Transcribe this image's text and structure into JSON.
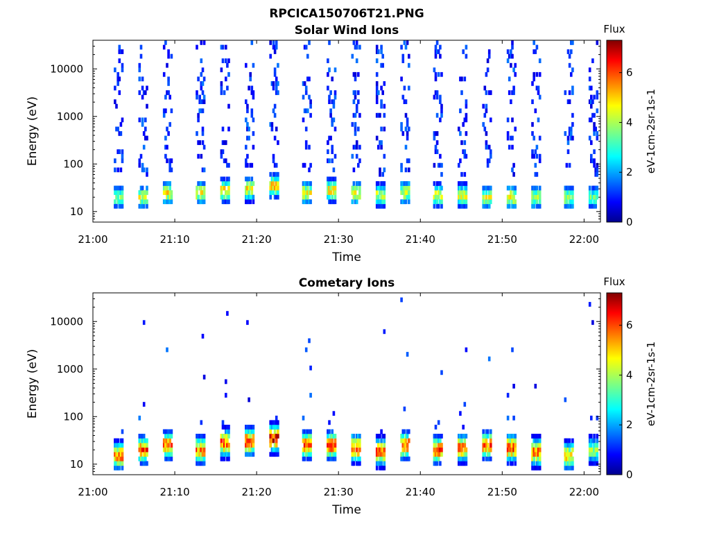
{
  "figure": {
    "filename": "RPCICA150706T21.PNG"
  },
  "colors": {
    "colormap": "jet",
    "axis": "#000000",
    "background": "#ffffff"
  },
  "chart_data": [
    {
      "type": "heatmap",
      "title": "Solar Wind Ions",
      "xlabel": "Time",
      "ylabel": "Energy (eV)",
      "x_range": [
        "21:00",
        "22:02"
      ],
      "x_ticks": [
        "21:00",
        "21:10",
        "21:20",
        "21:30",
        "21:40",
        "21:50",
        "22:00"
      ],
      "y_scale": "log",
      "y_range": [
        6,
        40000
      ],
      "y_ticks": [
        10,
        100,
        1000,
        10000
      ],
      "y_tick_labels": [
        "10",
        "100",
        "1000",
        "10000"
      ],
      "colorbar": {
        "title": "Flux",
        "label": "eV-1cm-2sr-1s-1",
        "range": [
          0,
          7.3
        ],
        "ticks": [
          0,
          2,
          4,
          6
        ]
      },
      "scan_period_min": 3.2,
      "scans": [
        {
          "t": 21.03,
          "peak_energy_eV": 20,
          "peak_flux": 4.0
        },
        {
          "t": 21.06,
          "peak_energy_eV": 20,
          "peak_flux": 4.6
        },
        {
          "t": 21.09,
          "peak_energy_eV": 25,
          "peak_flux": 4.8
        },
        {
          "t": 21.13,
          "peak_energy_eV": 25,
          "peak_flux": 4.7
        },
        {
          "t": 21.16,
          "peak_energy_eV": 28,
          "peak_flux": 5.0
        },
        {
          "t": 21.19,
          "peak_energy_eV": 30,
          "peak_flux": 5.0
        },
        {
          "t": 21.22,
          "peak_energy_eV": 35,
          "peak_flux": 5.2
        },
        {
          "t": 21.26,
          "peak_energy_eV": 25,
          "peak_flux": 4.8
        },
        {
          "t": 21.29,
          "peak_energy_eV": 28,
          "peak_flux": 4.9
        },
        {
          "t": 21.32,
          "peak_energy_eV": 25,
          "peak_flux": 4.7
        },
        {
          "t": 21.35,
          "peak_energy_eV": 22,
          "peak_flux": 4.5
        },
        {
          "t": 21.38,
          "peak_energy_eV": 25,
          "peak_flux": 4.6
        },
        {
          "t": 21.42,
          "peak_energy_eV": 22,
          "peak_flux": 4.6
        },
        {
          "t": 21.45,
          "peak_energy_eV": 22,
          "peak_flux": 4.6
        },
        {
          "t": 21.48,
          "peak_energy_eV": 20,
          "peak_flux": 4.5
        },
        {
          "t": 21.51,
          "peak_energy_eV": 20,
          "peak_flux": 4.7
        },
        {
          "t": 21.54,
          "peak_energy_eV": 20,
          "peak_flux": 4.3
        },
        {
          "t": 21.58,
          "peak_energy_eV": 20,
          "peak_flux": 4.2
        },
        {
          "t": 21.61,
          "peak_energy_eV": 20,
          "peak_flux": 3.6
        }
      ]
    },
    {
      "type": "heatmap",
      "title": "Cometary Ions",
      "xlabel": "Time",
      "ylabel": "Energy (eV)",
      "x_range": [
        "21:00",
        "22:02"
      ],
      "x_ticks": [
        "21:00",
        "21:10",
        "21:20",
        "21:30",
        "21:40",
        "21:50",
        "22:00"
      ],
      "y_scale": "log",
      "y_range": [
        6,
        40000
      ],
      "y_ticks": [
        10,
        100,
        1000,
        10000
      ],
      "y_tick_labels": [
        "10",
        "100",
        "1000",
        "10000"
      ],
      "colorbar": {
        "title": "Flux",
        "label": "eV-1cm-2sr-1s-1",
        "range": [
          0,
          7.3
        ],
        "ticks": [
          0,
          2,
          4,
          6
        ]
      },
      "scan_period_min": 3.2,
      "scans": [
        {
          "t": 21.03,
          "peak_energy_eV": 15,
          "peak_flux": 5.8
        },
        {
          "t": 21.06,
          "peak_energy_eV": 20,
          "peak_flux": 6.2
        },
        {
          "t": 21.09,
          "peak_energy_eV": 25,
          "peak_flux": 6.0
        },
        {
          "t": 21.13,
          "peak_energy_eV": 20,
          "peak_flux": 5.8
        },
        {
          "t": 21.16,
          "peak_energy_eV": 28,
          "peak_flux": 6.2
        },
        {
          "t": 21.19,
          "peak_energy_eV": 30,
          "peak_flux": 6.3
        },
        {
          "t": 21.22,
          "peak_energy_eV": 35,
          "peak_flux": 6.8
        },
        {
          "t": 21.26,
          "peak_energy_eV": 25,
          "peak_flux": 6.2
        },
        {
          "t": 21.29,
          "peak_energy_eV": 25,
          "peak_flux": 6.3
        },
        {
          "t": 21.32,
          "peak_energy_eV": 22,
          "peak_flux": 6.2
        },
        {
          "t": 21.35,
          "peak_energy_eV": 18,
          "peak_flux": 6.0
        },
        {
          "t": 21.38,
          "peak_energy_eV": 25,
          "peak_flux": 6.1
        },
        {
          "t": 21.42,
          "peak_energy_eV": 20,
          "peak_flux": 6.0
        },
        {
          "t": 21.45,
          "peak_energy_eV": 22,
          "peak_flux": 6.1
        },
        {
          "t": 21.48,
          "peak_energy_eV": 25,
          "peak_flux": 6.1
        },
        {
          "t": 21.51,
          "peak_energy_eV": 22,
          "peak_flux": 6.3
        },
        {
          "t": 21.54,
          "peak_energy_eV": 18,
          "peak_flux": 6.0
        },
        {
          "t": 21.58,
          "peak_energy_eV": 15,
          "peak_flux": 5.5
        },
        {
          "t": 21.61,
          "peak_energy_eV": 20,
          "peak_flux": 4.0
        }
      ]
    }
  ]
}
